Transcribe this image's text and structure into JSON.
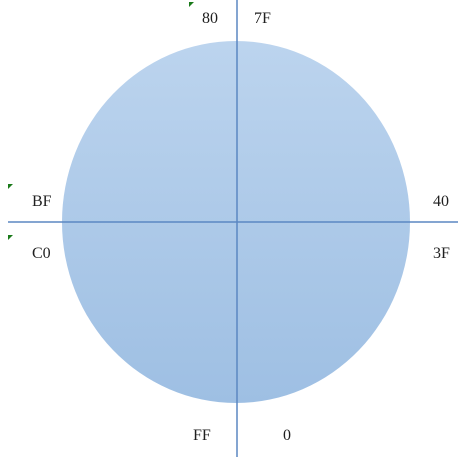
{
  "colors": {
    "background": "#ffffff",
    "circle_top": "#bcd4ee",
    "circle_bottom": "#9ebfe3",
    "axis": "#5b87c2",
    "label": "#1f1f1f",
    "marker": "#1a7a1a"
  },
  "labels": {
    "top_left": "80",
    "top_right": "7F",
    "left_upper": "BF",
    "left_lower": "C0",
    "right_upper": "40",
    "right_lower": "3F",
    "bottom_left": "FF",
    "bottom_right": "0"
  }
}
